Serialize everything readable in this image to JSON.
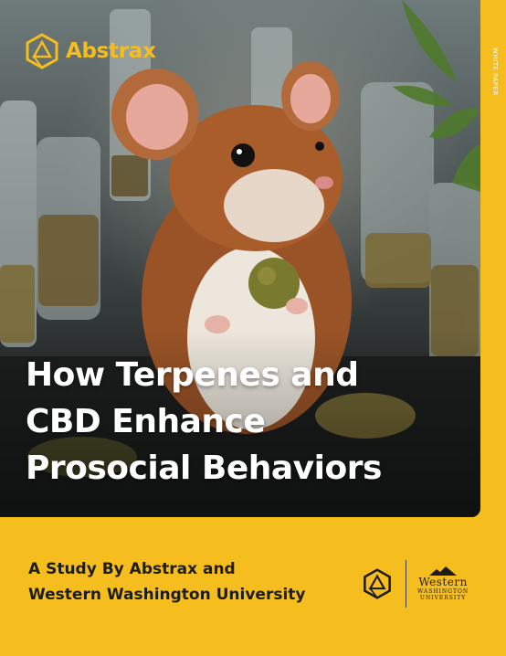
{
  "brand": {
    "name": "Abstrax"
  },
  "side_label": "WHITE PAPER",
  "title": {
    "lines": [
      "How Terpenes and",
      "CBD Enhance",
      "Prosocial Behaviors"
    ]
  },
  "subtitle": {
    "lines": [
      "A Study By Abstrax and",
      "Western Washington University"
    ]
  },
  "partner": {
    "name": "Western",
    "sub_1": "WASHINGTON",
    "sub_2": "UNIVERSITY"
  },
  "colors": {
    "accent": "#f6bd1e",
    "text_dark": "#1d1d1b",
    "title": "#ffffff"
  }
}
